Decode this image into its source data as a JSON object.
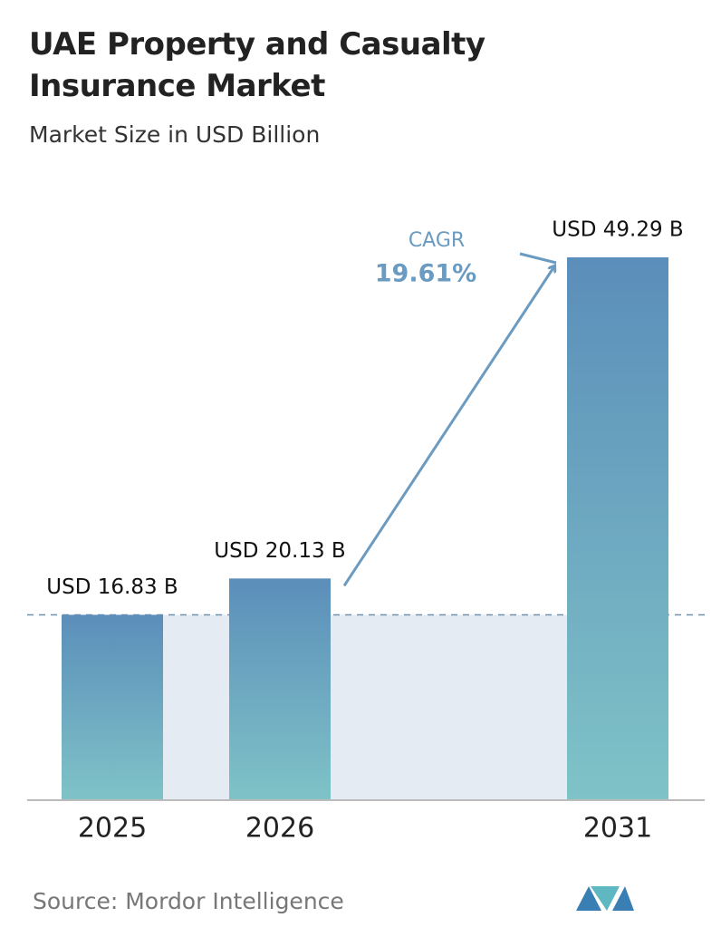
{
  "chart_data": {
    "type": "bar",
    "title": "UAE Property and Casualty Insurance Market",
    "subtitle": "Market Size in USD Billion",
    "categories": [
      "2025",
      "2026",
      "2031"
    ],
    "values": [
      16.83,
      20.13,
      49.29
    ],
    "value_labels": [
      "USD 16.83 B",
      "USD 20.13 B",
      "USD 49.29 B"
    ],
    "color": [
      "#5b8eba",
      "#7fc3c7"
    ],
    "annotations": [
      "CAGR",
      "19.61%"
    ],
    "source": "Source: Mordor Intelligence"
  }
}
